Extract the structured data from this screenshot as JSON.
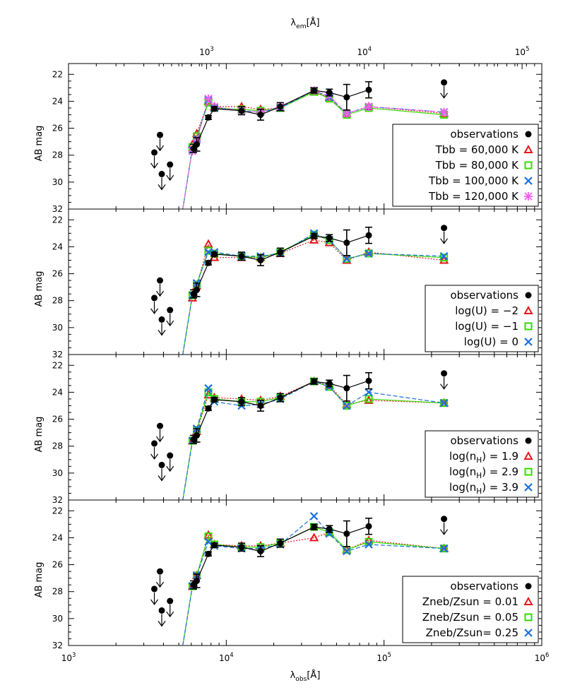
{
  "figure": {
    "top_axis_label": "λ_em[Å]",
    "bottom_axis_label": "λ_obs[Å]",
    "top_ticks": [
      {
        "value": 1000,
        "label": "10^3"
      },
      {
        "value": 10000,
        "label": "10^4"
      },
      {
        "value": 100000,
        "label": "10^5"
      }
    ],
    "bottom_ticks": [
      {
        "value": 1000,
        "label": "10^3"
      },
      {
        "value": 10000,
        "label": "10^4"
      },
      {
        "value": 100000,
        "label": "10^5"
      },
      {
        "value": 1000000,
        "label": "10^6"
      }
    ],
    "redshift_factor": 7.5
  },
  "colors": {
    "observations": "#000000",
    "red": "#e8161a",
    "green": "#33dd00",
    "blue": "#1a6fe0",
    "magenta": "#f060f0"
  },
  "chart_data": [
    {
      "type": "line",
      "panel": 1,
      "xlabel": "",
      "ylabel": "AB mag",
      "x_scale": "log",
      "xlim": [
        1000,
        1000000
      ],
      "ylim": [
        32,
        21.2
      ],
      "y_inverted": true,
      "yticks": [
        22,
        24,
        26,
        28,
        30,
        32
      ],
      "legend_position": "right",
      "observations": {
        "name": "observations",
        "x": [
          7700,
          8400,
          12500,
          16500,
          22000,
          36000,
          45000,
          58000,
          80000
        ],
        "y": [
          25.2,
          24.55,
          24.7,
          25.0,
          24.4,
          23.2,
          23.35,
          23.7,
          23.15
        ],
        "yerr": [
          0.15,
          0.15,
          0.3,
          0.4,
          0.3,
          0.2,
          0.25,
          0.95,
          0.6
        ]
      },
      "observations_low": {
        "x": [
          6200,
          6500
        ],
        "y": [
          27.5,
          27.2
        ],
        "yerr": [
          0.3,
          0.5
        ]
      },
      "upper_limits": {
        "x": [
          3500,
          3800,
          3900,
          4400,
          240000
        ],
        "y": [
          27.8,
          26.5,
          29.4,
          28.7,
          22.6
        ]
      },
      "series": [
        {
          "name": "Tbb = 60,000 K",
          "marker": "triangle",
          "color_key": "red",
          "dash": "2,2",
          "x": [
            6100,
            6500,
            7700,
            8400,
            12500,
            16500,
            22000,
            36000,
            45000,
            58000,
            80000,
            240000
          ],
          "y": [
            27.2,
            26.4,
            24.0,
            24.4,
            24.4,
            24.6,
            24.5,
            23.3,
            23.7,
            24.9,
            24.4,
            24.9
          ]
        },
        {
          "name": "Tbb = 80,000 K",
          "marker": "square",
          "color_key": "green",
          "dash": "",
          "x": [
            6100,
            6500,
            7700,
            8400,
            12500,
            16500,
            22000,
            36000,
            45000,
            58000,
            80000,
            240000
          ],
          "y": [
            27.4,
            26.6,
            24.1,
            24.5,
            24.6,
            24.7,
            24.5,
            23.3,
            23.8,
            25.0,
            24.5,
            25.0
          ]
        },
        {
          "name": "Tbb = 100,000 K",
          "marker": "x",
          "color_key": "blue",
          "dash": "6,3",
          "x": [
            6100,
            6500,
            7700,
            8400,
            12500,
            16500,
            22000,
            36000,
            45000,
            58000,
            80000,
            240000
          ],
          "y": [
            27.6,
            26.8,
            23.9,
            24.5,
            24.7,
            24.8,
            24.5,
            23.2,
            23.7,
            24.9,
            24.4,
            24.8
          ]
        },
        {
          "name": "Tbb = 120,000 K",
          "marker": "asterisk",
          "color_key": "magenta",
          "dash": "8,3,2,3",
          "x": [
            6100,
            6500,
            7700,
            8400,
            12500,
            16500,
            22000,
            36000,
            45000,
            58000,
            80000,
            240000
          ],
          "y": [
            27.7,
            26.9,
            23.8,
            24.4,
            24.7,
            24.8,
            24.4,
            23.2,
            23.6,
            24.9,
            24.4,
            24.8
          ]
        }
      ],
      "drop_line": {
        "x": [
          5300,
          6100
        ],
        "y": [
          32,
          27.5
        ]
      }
    },
    {
      "type": "line",
      "panel": 2,
      "xlabel": "",
      "ylabel": "AB mag",
      "x_scale": "log",
      "xlim": [
        1000,
        1000000
      ],
      "ylim": [
        32,
        21.2
      ],
      "y_inverted": true,
      "yticks": [
        22,
        24,
        26,
        28,
        30,
        32
      ],
      "legend_position": "right",
      "observations": {
        "name": "observations",
        "x": [
          7700,
          8400,
          12500,
          16500,
          22000,
          36000,
          45000,
          58000,
          80000
        ],
        "y": [
          25.2,
          24.55,
          24.7,
          25.0,
          24.4,
          23.2,
          23.35,
          23.7,
          23.15
        ],
        "yerr": [
          0.15,
          0.15,
          0.3,
          0.4,
          0.3,
          0.2,
          0.25,
          0.95,
          0.6
        ]
      },
      "observations_low": {
        "x": [
          6200,
          6500
        ],
        "y": [
          27.5,
          27.2
        ],
        "yerr": [
          0.3,
          0.5
        ]
      },
      "upper_limits": {
        "x": [
          3500,
          3800,
          3900,
          4400,
          240000
        ],
        "y": [
          27.8,
          26.5,
          29.4,
          28.7,
          22.6
        ]
      },
      "series": [
        {
          "name": "log(U) = −2",
          "marker": "triangle",
          "color_key": "red",
          "dash": "2,2",
          "x": [
            6100,
            6500,
            7700,
            8400,
            12500,
            16500,
            22000,
            36000,
            45000,
            58000,
            80000,
            240000
          ],
          "y": [
            27.8,
            26.9,
            23.8,
            24.8,
            24.8,
            24.8,
            24.5,
            23.5,
            23.7,
            25.0,
            24.4,
            25.0
          ]
        },
        {
          "name": "log(U) = −1",
          "marker": "square",
          "color_key": "green",
          "dash": "",
          "x": [
            6100,
            6500,
            7700,
            8400,
            12500,
            16500,
            22000,
            36000,
            45000,
            58000,
            80000,
            240000
          ],
          "y": [
            27.6,
            26.8,
            24.3,
            24.5,
            24.7,
            24.8,
            24.4,
            23.1,
            23.5,
            24.9,
            24.5,
            24.8
          ]
        },
        {
          "name": "log(U) = 0",
          "marker": "x",
          "color_key": "blue",
          "dash": "6,3",
          "x": [
            6100,
            6500,
            7700,
            8400,
            12500,
            16500,
            22000,
            36000,
            45000,
            58000,
            80000,
            240000
          ],
          "y": [
            27.6,
            26.7,
            24.4,
            24.4,
            24.7,
            24.7,
            24.5,
            23.0,
            23.5,
            24.9,
            24.5,
            24.7
          ]
        }
      ],
      "drop_line": {
        "x": [
          5300,
          6100
        ],
        "y": [
          32,
          27.6
        ]
      }
    },
    {
      "type": "line",
      "panel": 3,
      "xlabel": "",
      "ylabel": "AB mag",
      "x_scale": "log",
      "xlim": [
        1000,
        1000000
      ],
      "ylim": [
        32,
        21.2
      ],
      "y_inverted": true,
      "yticks": [
        22,
        24,
        26,
        28,
        30,
        32
      ],
      "legend_position": "right",
      "observations": {
        "name": "observations",
        "x": [
          7700,
          8400,
          12500,
          16500,
          22000,
          36000,
          45000,
          58000,
          80000
        ],
        "y": [
          25.2,
          24.55,
          24.7,
          25.0,
          24.4,
          23.2,
          23.35,
          23.7,
          23.15
        ],
        "yerr": [
          0.15,
          0.15,
          0.3,
          0.4,
          0.3,
          0.2,
          0.25,
          0.95,
          0.6
        ]
      },
      "observations_low": {
        "x": [
          6200,
          6500
        ],
        "y": [
          27.5,
          27.2
        ],
        "yerr": [
          0.3,
          0.5
        ]
      },
      "upper_limits": {
        "x": [
          3500,
          3800,
          3900,
          4400,
          240000
        ],
        "y": [
          27.8,
          26.5,
          29.4,
          28.7,
          22.6
        ]
      },
      "series": [
        {
          "name": "log(n_H) = 1.9",
          "marker": "triangle",
          "color_key": "red",
          "dash": "2,2",
          "x": [
            6100,
            6500,
            7700,
            8400,
            12500,
            16500,
            22000,
            36000,
            45000,
            58000,
            80000,
            240000
          ],
          "y": [
            27.6,
            26.9,
            24.2,
            24.4,
            24.5,
            24.6,
            24.3,
            23.2,
            23.5,
            24.9,
            24.6,
            24.8
          ]
        },
        {
          "name": "log(n_H) = 2.9",
          "marker": "square",
          "color_key": "green",
          "dash": "",
          "x": [
            6100,
            6500,
            7700,
            8400,
            12500,
            16500,
            22000,
            36000,
            45000,
            58000,
            80000,
            240000
          ],
          "y": [
            27.6,
            26.8,
            24.0,
            24.5,
            24.7,
            24.7,
            24.4,
            23.2,
            23.6,
            25.0,
            24.5,
            24.8
          ]
        },
        {
          "name": "log(n_H) = 3.9",
          "marker": "x",
          "color_key": "blue",
          "dash": "6,3",
          "x": [
            6100,
            6500,
            7700,
            8400,
            12500,
            16500,
            22000,
            36000,
            45000,
            58000,
            80000,
            240000
          ],
          "y": [
            27.6,
            26.7,
            23.7,
            24.7,
            25.0,
            24.9,
            24.5,
            23.2,
            23.6,
            25.0,
            24.0,
            24.8
          ]
        }
      ],
      "drop_line": {
        "x": [
          5300,
          6100
        ],
        "y": [
          32,
          27.6
        ]
      }
    },
    {
      "type": "line",
      "panel": 4,
      "xlabel": "λ_obs[Å]",
      "ylabel": "AB mag",
      "x_scale": "log",
      "xlim": [
        1000,
        1000000
      ],
      "ylim": [
        32,
        21.2
      ],
      "y_inverted": true,
      "yticks": [
        22,
        24,
        26,
        28,
        30,
        32
      ],
      "legend_position": "right",
      "observations": {
        "name": "observations",
        "x": [
          7700,
          8400,
          12500,
          16500,
          22000,
          36000,
          45000,
          58000,
          80000
        ],
        "y": [
          25.2,
          24.55,
          24.7,
          25.0,
          24.4,
          23.2,
          23.35,
          23.7,
          23.15
        ],
        "yerr": [
          0.15,
          0.15,
          0.3,
          0.4,
          0.3,
          0.2,
          0.25,
          0.95,
          0.6
        ]
      },
      "observations_low": {
        "x": [
          6200,
          6500
        ],
        "y": [
          27.5,
          27.2
        ],
        "yerr": [
          0.3,
          0.5
        ]
      },
      "upper_limits": {
        "x": [
          3500,
          3800,
          3900,
          4400,
          240000
        ],
        "y": [
          27.8,
          26.5,
          29.4,
          28.7,
          22.6
        ]
      },
      "series": [
        {
          "name": "Zneb/Zsun = 0.01",
          "marker": "triangle",
          "color_key": "red",
          "dash": "2,2",
          "x": [
            6100,
            6500,
            7700,
            8400,
            12500,
            16500,
            22000,
            36000,
            45000,
            58000,
            80000,
            240000
          ],
          "y": [
            27.6,
            26.8,
            23.8,
            24.5,
            24.6,
            24.6,
            24.4,
            24.0,
            23.6,
            24.9,
            24.2,
            24.8
          ]
        },
        {
          "name": "Zneb/Zsun = 0.05",
          "marker": "square",
          "color_key": "green",
          "dash": "",
          "x": [
            6100,
            6500,
            7700,
            8400,
            12500,
            16500,
            22000,
            36000,
            45000,
            58000,
            80000,
            240000
          ],
          "y": [
            27.6,
            26.8,
            23.9,
            24.5,
            24.7,
            24.7,
            24.4,
            23.2,
            23.6,
            24.9,
            24.3,
            24.8
          ]
        },
        {
          "name": "Zneb/Zsun= 0.25",
          "marker": "x",
          "color_key": "blue",
          "dash": "6,3",
          "x": [
            6100,
            6500,
            7700,
            8400,
            12500,
            16500,
            22000,
            36000,
            45000,
            58000,
            80000,
            240000
          ],
          "y": [
            27.6,
            26.8,
            24.3,
            24.6,
            24.8,
            24.8,
            24.5,
            22.4,
            23.7,
            25.0,
            24.5,
            24.8
          ]
        }
      ],
      "drop_line": {
        "x": [
          5300,
          6100
        ],
        "y": [
          32,
          27.6
        ]
      }
    }
  ]
}
